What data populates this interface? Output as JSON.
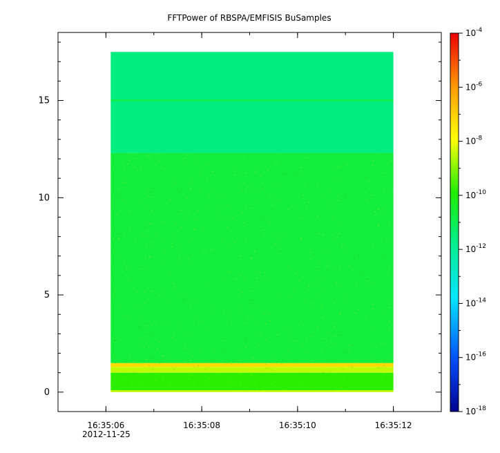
{
  "chart_data": {
    "type": "heatmap",
    "title": "FFTPower of RBSPA/EMFISIS  BuSamples",
    "xlabel": "",
    "ylabel": "",
    "date_label": "2012-11-25",
    "x_range": [
      "16:35:05",
      "16:35:13"
    ],
    "x_ticks": [
      "16:35:06",
      "16:35:08",
      "16:35:10",
      "16:35:12"
    ],
    "data_x_range": [
      "16:35:06.1",
      "16:35:12.0"
    ],
    "ylim": [
      -1,
      18.5
    ],
    "y_ticks": [
      0,
      5,
      10,
      15
    ],
    "data_y_range": [
      0,
      17.5
    ],
    "colorbar": {
      "scale": "log",
      "range": [
        1e-18,
        0.0001
      ],
      "tick_values": [
        0.0001,
        1e-06,
        1e-08,
        1e-10,
        1e-12,
        1e-14,
        1e-16,
        1e-18
      ],
      "tick_bases": [
        "10",
        "10",
        "10",
        "10",
        "10",
        "10",
        "10",
        "10"
      ],
      "tick_exponents": [
        "-4",
        "-6",
        "-8",
        "-10",
        "-12",
        "-14",
        "-16",
        "-18"
      ]
    },
    "regions": [
      {
        "y_range": [
          0,
          0.1
        ],
        "log_power": -8.5
      },
      {
        "y_range": [
          0.1,
          1.0
        ],
        "log_power": -9.8
      },
      {
        "y_range": [
          1.0,
          1.3
        ],
        "log_power": -8.5
      },
      {
        "y_range": [
          1.3,
          1.5
        ],
        "log_power": -7.2
      },
      {
        "y_range": [
          1.5,
          12.3
        ],
        "log_power": -10.7
      },
      {
        "y_range": [
          12.3,
          17.5
        ],
        "log_power": -11.6
      }
    ],
    "line_features": [
      {
        "y": 15.0,
        "log_power": -10.6
      }
    ]
  }
}
